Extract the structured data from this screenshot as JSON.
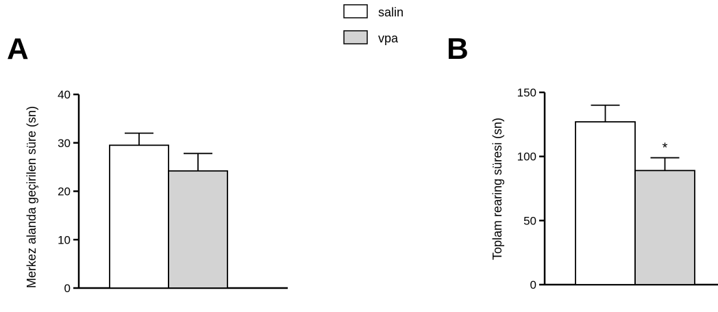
{
  "legend": {
    "items": [
      {
        "label": "salin",
        "color": "#ffffff"
      },
      {
        "label": "vpa",
        "color": "#d3d3d3"
      }
    ]
  },
  "chart_data": [
    {
      "panel": "A",
      "type": "bar",
      "categories": [
        "salin",
        "vpa"
      ],
      "values": [
        29.5,
        24.2
      ],
      "errors": [
        2.5,
        3.6
      ],
      "colors": [
        "#ffffff",
        "#d3d3d3"
      ],
      "ylabel": "Merkez alanda geçirilen süre (sn)",
      "ylim": [
        0,
        40
      ],
      "yticks": [
        0,
        10,
        20,
        30,
        40
      ],
      "annotations": [
        "",
        ""
      ]
    },
    {
      "panel": "B",
      "type": "bar",
      "categories": [
        "salin",
        "vpa"
      ],
      "values": [
        127,
        89
      ],
      "errors": [
        13,
        10
      ],
      "colors": [
        "#ffffff",
        "#d3d3d3"
      ],
      "ylabel": "Toplam rearing süresi (sn)",
      "ylim": [
        0,
        150
      ],
      "yticks": [
        0,
        50,
        100,
        150
      ],
      "annotations": [
        "",
        "*"
      ]
    }
  ]
}
